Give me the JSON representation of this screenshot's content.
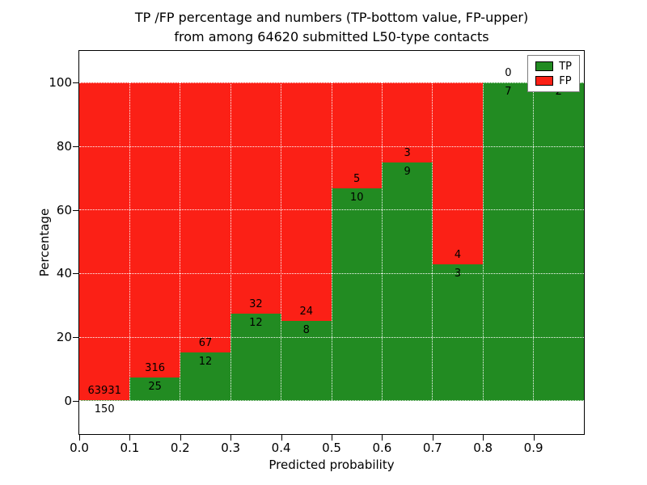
{
  "chart_data": {
    "type": "bar",
    "stacked": true,
    "title_line1": "TP /FP percentage and numbers (TP-bottom value, FP-upper)",
    "title_line2": "from among 64620 submitted L50-type contacts",
    "xlabel": "Predicted probability",
    "ylabel": "Percentage",
    "bin_width": 0.1,
    "x_bin_starts": [
      0.0,
      0.1,
      0.2,
      0.3,
      0.4,
      0.5,
      0.6,
      0.7,
      0.8,
      0.9
    ],
    "xticks": [
      "0.0",
      "0.1",
      "0.2",
      "0.3",
      "0.4",
      "0.5",
      "0.6",
      "0.7",
      "0.8",
      "0.9"
    ],
    "yticks": [
      "0",
      "20",
      "40",
      "60",
      "80",
      "100"
    ],
    "ylim": [
      -10.5,
      110
    ],
    "grid": true,
    "grid_color": "#ffffff",
    "series": [
      {
        "name": "TP",
        "color": "#228b22",
        "counts": [
          150,
          25,
          12,
          12,
          8,
          10,
          9,
          3,
          7,
          2
        ]
      },
      {
        "name": "FP",
        "color": "#fb2016",
        "counts": [
          63931,
          316,
          67,
          32,
          24,
          5,
          3,
          4,
          0,
          0
        ]
      }
    ],
    "tp_percent_of_bin": [
      0.2,
      7.3,
      15.2,
      27.3,
      25.0,
      66.7,
      75.0,
      42.9,
      100.0,
      100.0
    ],
    "legend": {
      "position": "upper right",
      "labels": [
        "TP",
        "FP"
      ]
    }
  }
}
